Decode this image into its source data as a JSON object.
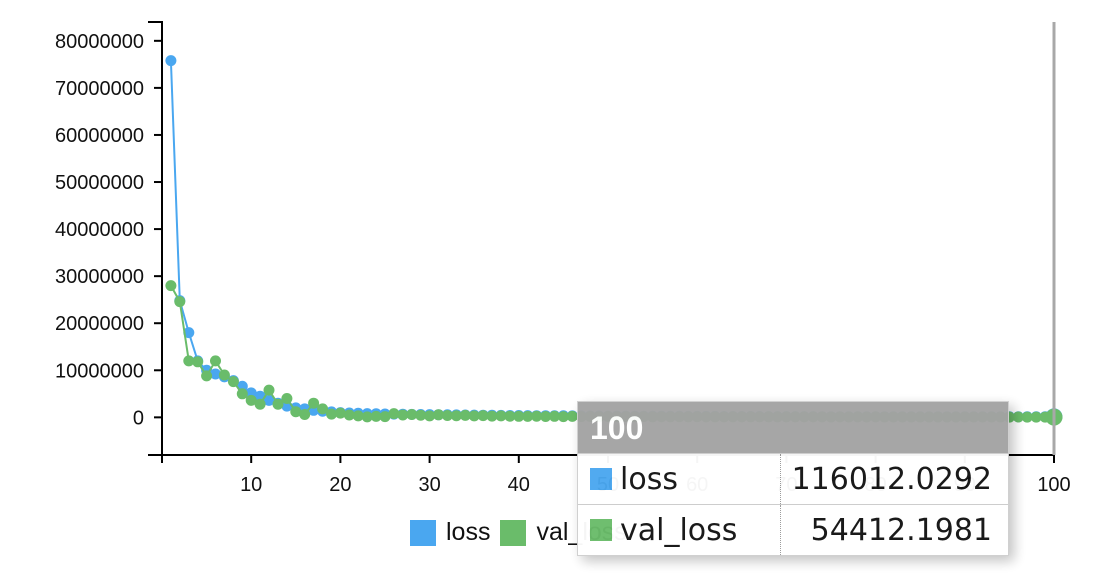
{
  "chart_data": {
    "type": "line",
    "title": "",
    "xlabel": "",
    "ylabel": "",
    "xlim": [
      0,
      100
    ],
    "ylim": [
      -8000000,
      84000000
    ],
    "x_ticks": [
      10,
      20,
      30,
      40,
      50,
      60,
      70,
      80,
      90,
      100
    ],
    "x_tick_labels": [
      "10",
      "20",
      "30",
      "40",
      "50",
      "60",
      "70",
      "80",
      "90",
      "100"
    ],
    "y_ticks": [
      0,
      10000000,
      20000000,
      30000000,
      40000000,
      50000000,
      60000000,
      70000000,
      80000000
    ],
    "y_tick_labels": [
      "0",
      "10000000",
      "20000000",
      "30000000",
      "40000000",
      "50000000",
      "60000000",
      "70000000",
      "80000000"
    ],
    "grid": false,
    "legend_position": "bottom",
    "series": [
      {
        "name": "loss",
        "color": "#4aa7f0",
        "x": [
          1,
          2,
          3,
          4,
          5,
          6,
          7,
          8,
          9,
          10,
          11,
          12,
          13,
          14,
          15,
          16,
          17,
          18,
          19,
          20,
          21,
          22,
          23,
          24,
          25,
          26,
          27,
          28,
          29,
          30,
          31,
          32,
          33,
          34,
          35,
          36,
          37,
          38,
          39,
          40,
          41,
          42,
          43,
          44,
          45,
          46,
          47,
          48,
          49,
          50,
          51,
          52,
          53,
          54,
          55,
          56,
          57,
          58,
          59,
          60,
          61,
          62,
          63,
          64,
          65,
          66,
          67,
          68,
          69,
          70,
          71,
          72,
          73,
          74,
          75,
          76,
          77,
          78,
          79,
          80,
          81,
          82,
          83,
          84,
          85,
          86,
          87,
          88,
          89,
          90,
          91,
          92,
          93,
          94,
          95,
          96,
          97,
          98,
          99,
          100
        ],
        "values": [
          75800000,
          24800000,
          18000000,
          12000000,
          10000000,
          9200000,
          8600000,
          7800000,
          6600000,
          5200000,
          4500000,
          3600000,
          3000000,
          2400000,
          2000000,
          1800000,
          1500000,
          1300000,
          1150000,
          1000000,
          920000,
          860000,
          800000,
          760000,
          720000,
          690000,
          660000,
          630000,
          600000,
          580000,
          560000,
          540000,
          520000,
          500000,
          480000,
          460000,
          440000,
          420000,
          400000,
          385000,
          370000,
          355000,
          340000,
          330000,
          320000,
          310000,
          300000,
          290000,
          280000,
          270000,
          262000,
          255000,
          248000,
          241000,
          234000,
          228000,
          222000,
          216000,
          210000,
          205000,
          200000,
          195000,
          190000,
          185000,
          180000,
          176000,
          172000,
          168000,
          164000,
          160000,
          157000,
          154000,
          151000,
          148000,
          145000,
          142000,
          139000,
          136000,
          133000,
          130000,
          128000,
          126000,
          124000,
          122000,
          120500,
          119500,
          118800,
          118200,
          117700,
          117300,
          117000,
          116800,
          116600,
          116450,
          116300,
          116200,
          116120,
          116070,
          116030,
          116012.0292
        ]
      },
      {
        "name": "val_loss",
        "color": "#6abc6a",
        "x": [
          1,
          2,
          3,
          4,
          5,
          6,
          7,
          8,
          9,
          10,
          11,
          12,
          13,
          14,
          15,
          16,
          17,
          18,
          19,
          20,
          21,
          22,
          23,
          24,
          25,
          26,
          27,
          28,
          29,
          30,
          31,
          32,
          33,
          34,
          35,
          36,
          37,
          38,
          39,
          40,
          41,
          42,
          43,
          44,
          45,
          46,
          47,
          48,
          49,
          50,
          51,
          52,
          53,
          54,
          55,
          56,
          57,
          58,
          59,
          60,
          61,
          62,
          63,
          64,
          65,
          66,
          67,
          68,
          69,
          70,
          71,
          72,
          73,
          74,
          75,
          76,
          77,
          78,
          79,
          80,
          81,
          82,
          83,
          84,
          85,
          86,
          87,
          88,
          89,
          90,
          91,
          92,
          93,
          94,
          95,
          96,
          97,
          98,
          99,
          100
        ],
        "values": [
          28000000,
          24600000,
          12000000,
          11800000,
          8800000,
          12000000,
          9000000,
          7600000,
          5000000,
          3600000,
          2800000,
          5800000,
          2800000,
          4000000,
          1200000,
          600000,
          3000000,
          1800000,
          700000,
          900000,
          500000,
          300000,
          100000,
          200000,
          150000,
          800000,
          500000,
          600000,
          450000,
          300000,
          550000,
          400000,
          350000,
          420000,
          300000,
          380000,
          260000,
          310000,
          240000,
          220000,
          200000,
          250000,
          180000,
          230000,
          160000,
          210000,
          150000,
          190000,
          140000,
          170000,
          130000,
          160000,
          125000,
          150000,
          120000,
          140000,
          115000,
          135000,
          110000,
          130000,
          105000,
          125000,
          100000,
          120000,
          95000,
          115000,
          92000,
          110000,
          90000,
          105000,
          88000,
          100000,
          85000,
          95000,
          82000,
          90000,
          80000,
          88000,
          78000,
          85000,
          76000,
          82000,
          74000,
          80000,
          72000,
          78000,
          70000,
          75000,
          68000,
          72000,
          66000,
          70000,
          64000,
          68000,
          62000,
          66000,
          60000,
          58000,
          56000,
          54412.1981
        ]
      }
    ]
  },
  "legend": {
    "items": [
      {
        "label": "loss",
        "color": "#4aa7f0"
      },
      {
        "label": "val_loss",
        "color": "#6abc6a"
      }
    ]
  },
  "tooltip": {
    "title": "100",
    "rows": [
      {
        "label": "loss",
        "value": "116012.0292",
        "color": "#4aa7f0"
      },
      {
        "label": "val_loss",
        "value": "54412.1981",
        "color": "#6abc6a"
      }
    ]
  }
}
